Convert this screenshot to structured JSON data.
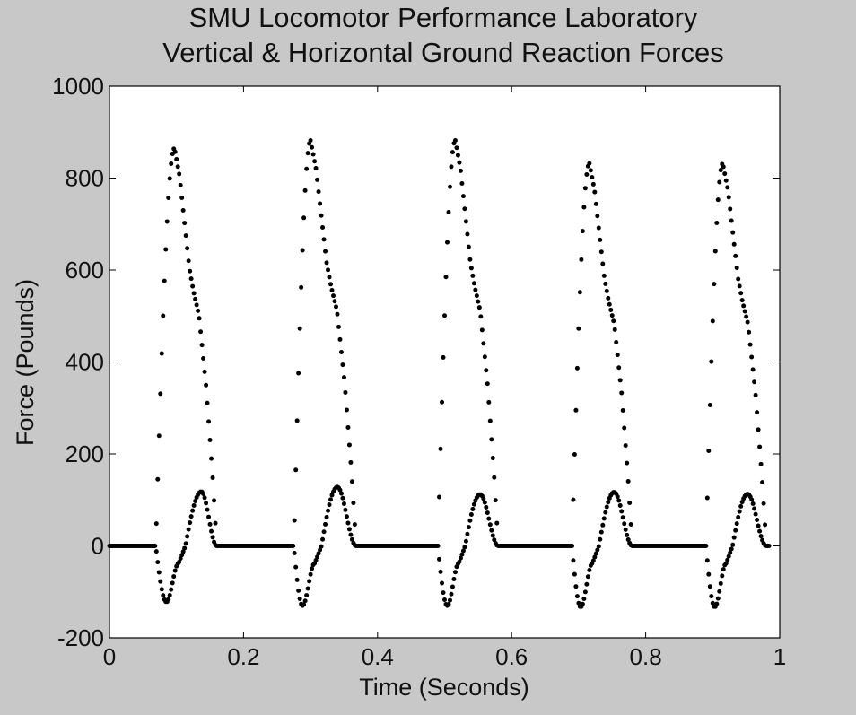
{
  "chart_data": {
    "type": "scatter",
    "title_lines": [
      "SMU Locomotor Performance Laboratory",
      "Vertical & Horizontal Ground Reaction Forces"
    ],
    "xlabel": "Time (Seconds)",
    "ylabel": "Force (Pounds)",
    "xlim": [
      0,
      1
    ],
    "ylim": [
      -200,
      1000
    ],
    "xticks": [
      0,
      0.2,
      0.4,
      0.6,
      0.8,
      1
    ],
    "xtick_labels": [
      "0",
      "0.2",
      "0.4",
      "0.6",
      "0.8",
      "1"
    ],
    "yticks": [
      -200,
      0,
      200,
      400,
      600,
      800,
      1000
    ],
    "ytick_labels": [
      "-200",
      "0",
      "200",
      "400",
      "600",
      "800",
      "1000"
    ],
    "grid": false,
    "legend": "none",
    "marker_color": "#000000",
    "background_color": "#ffffff",
    "sample_interval_s": 0.002,
    "steps": [
      {
        "t0": 0.069,
        "t1": 0.16,
        "vertical_peak": 865,
        "vertical_peak_time": 0.097,
        "horizontal_min": -122,
        "horizontal_min_time": 0.085,
        "horizontal_max": 118,
        "horizontal_max_time": 0.137
      },
      {
        "t0": 0.275,
        "t1": 0.368,
        "vertical_peak": 882,
        "vertical_peak_time": 0.3,
        "horizontal_min": -130,
        "horizontal_min_time": 0.288,
        "horizontal_max": 128,
        "horizontal_max_time": 0.34
      },
      {
        "t0": 0.49,
        "t1": 0.58,
        "vertical_peak": 882,
        "vertical_peak_time": 0.516,
        "horizontal_min": -130,
        "horizontal_min_time": 0.504,
        "horizontal_max": 112,
        "horizontal_max_time": 0.553
      },
      {
        "t0": 0.69,
        "t1": 0.78,
        "vertical_peak": 832,
        "vertical_peak_time": 0.716,
        "horizontal_min": -133,
        "horizontal_min_time": 0.703,
        "horizontal_max": 117,
        "horizontal_max_time": 0.753
      },
      {
        "t0": 0.89,
        "t1": 0.98,
        "vertical_peak": 832,
        "vertical_peak_time": 0.915,
        "horizontal_min": -133,
        "horizontal_min_time": 0.903,
        "horizontal_max": 113,
        "horizontal_max_time": 0.952
      }
    ],
    "series": [
      {
        "role": "vertical",
        "shape": "rapid rise to peak, fall with mid-stance shoulder near 570 lb, return to 0 at step end"
      },
      {
        "role": "horizontal",
        "shape": "braking trough below 0, small plateau near -40 lb, propulsive hump above 0, return to 0 at step end"
      }
    ]
  }
}
